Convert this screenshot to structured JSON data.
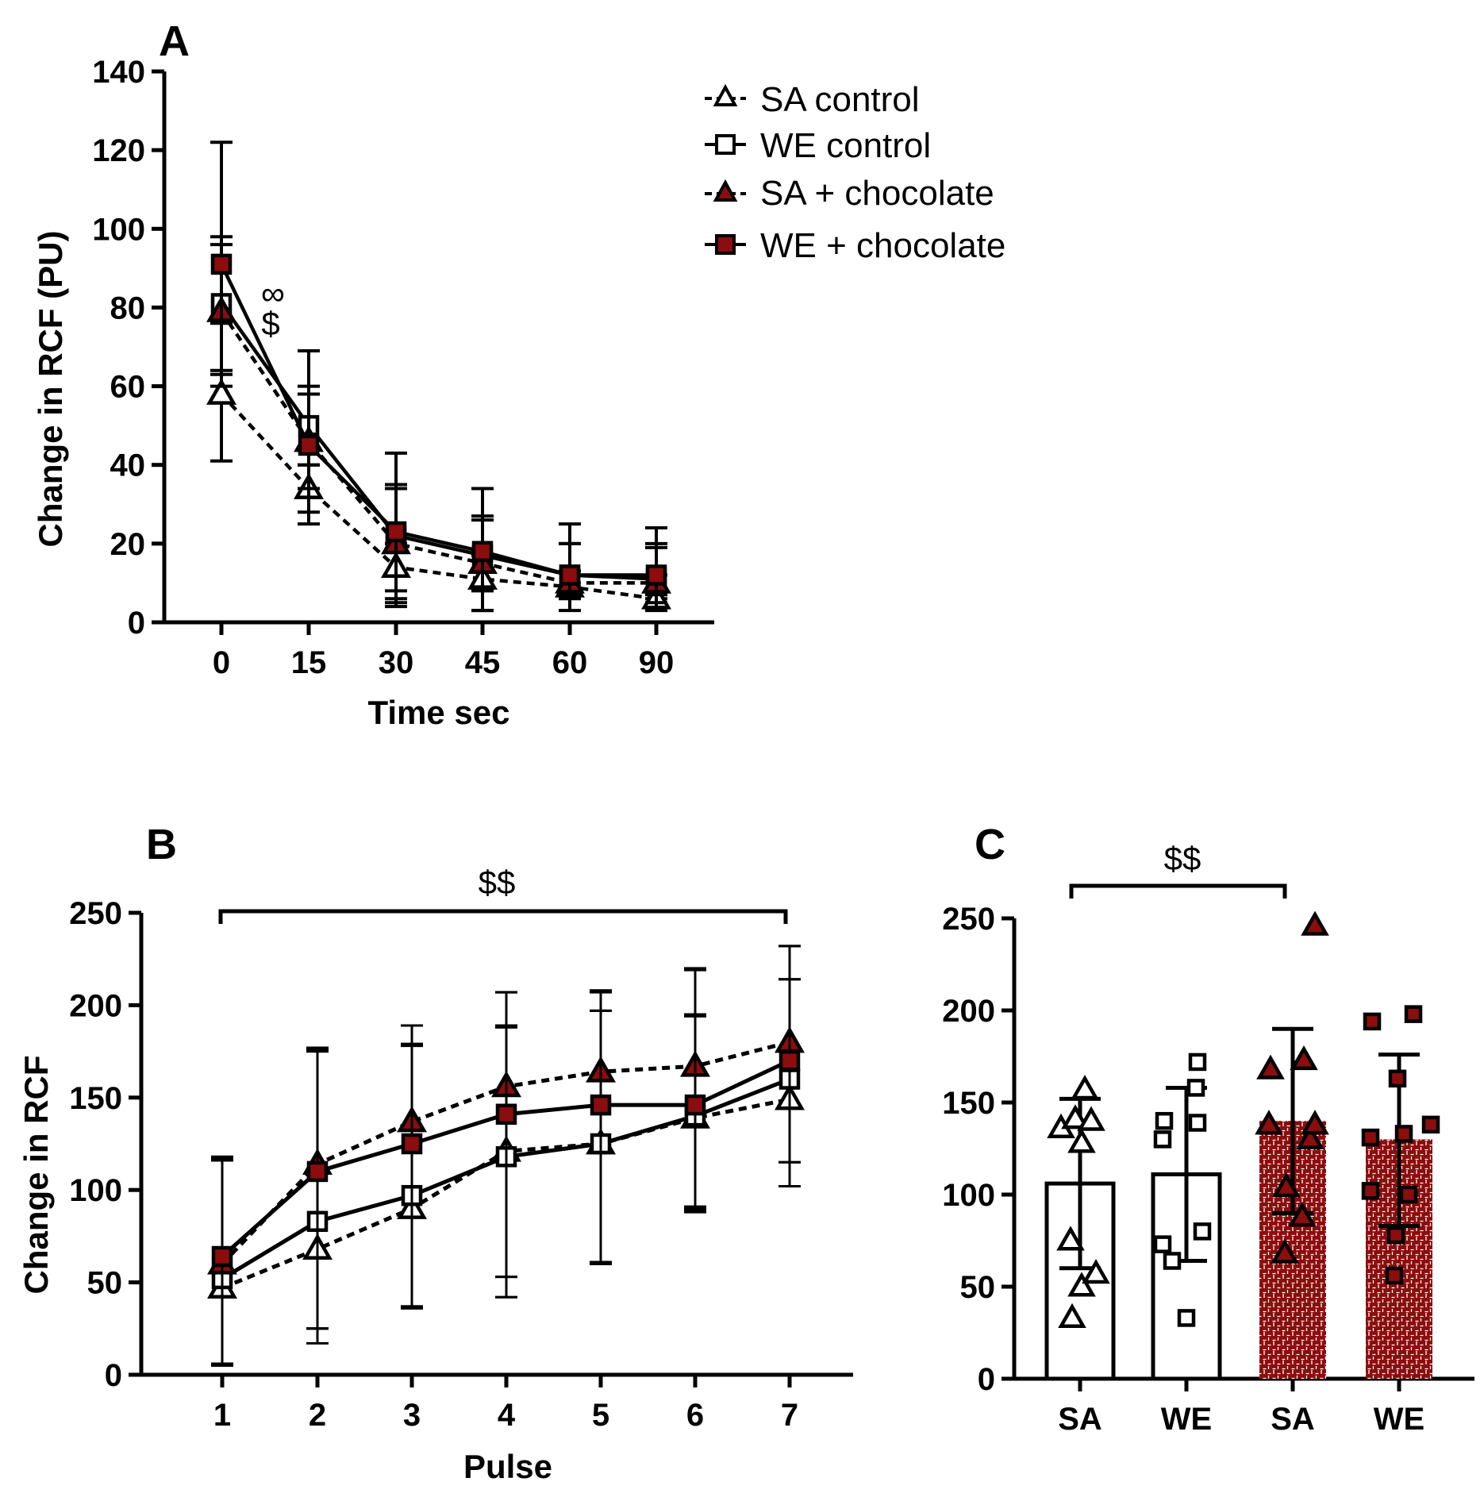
{
  "colors": {
    "accent": "#8b0d0d",
    "ink": "#000000",
    "background": "#ffffff"
  },
  "legend": [
    {
      "label": "SA control",
      "marker": "triangle-open",
      "line": "dashed"
    },
    {
      "label": "WE control",
      "marker": "square-open",
      "line": "solid"
    },
    {
      "label": "SA + chocolate",
      "marker": "triangle-filled",
      "line": "dashed"
    },
    {
      "label": "WE + chocolate",
      "marker": "square-filled",
      "line": "solid"
    }
  ],
  "chart_data": [
    {
      "panel": "A",
      "type": "line",
      "xlabel": "Time sec",
      "ylabel": "Change in RCF (PU)",
      "categories": [
        "0",
        "15",
        "30",
        "45",
        "60",
        "90"
      ],
      "ylim": [
        0,
        140
      ],
      "yticks": [
        "0",
        "20",
        "40",
        "60",
        "80",
        "100",
        "120",
        "140"
      ],
      "annotations": [
        "∞",
        "$"
      ],
      "series": [
        {
          "name": "SA control",
          "values": [
            58,
            34,
            14,
            11,
            9,
            6
          ],
          "err_hi": [
            76,
            40,
            20,
            17,
            13,
            12
          ],
          "err_lo": [
            41,
            28,
            5,
            3,
            9,
            6
          ]
        },
        {
          "name": "WE control",
          "values": [
            81,
            50,
            22,
            17,
            12,
            11
          ],
          "err_hi": [
            98,
            60,
            35,
            27,
            20,
            20
          ],
          "err_lo": [
            64,
            40,
            8,
            9,
            7,
            7
          ]
        },
        {
          "name": "SA + chocolate",
          "values": [
            79,
            46,
            20,
            15,
            10,
            10
          ],
          "err_hi": [
            96,
            58,
            34,
            26,
            20,
            19
          ],
          "err_lo": [
            63,
            34,
            6,
            8,
            6,
            5
          ]
        },
        {
          "name": "WE + chocolate",
          "values": [
            91,
            45,
            23,
            18,
            12,
            12
          ],
          "err_hi": [
            122,
            69,
            43,
            34,
            25,
            24
          ],
          "err_lo": [
            60,
            25,
            4,
            3,
            3,
            3
          ]
        }
      ]
    },
    {
      "panel": "B",
      "type": "line",
      "xlabel": "Pulse",
      "ylabel": "Change in RCF",
      "categories": [
        "1",
        "2",
        "3",
        "4",
        "5",
        "6",
        "7"
      ],
      "ylim": [
        0,
        250
      ],
      "yticks": [
        "0",
        "50",
        "100",
        "150",
        "200",
        "250"
      ],
      "significance": {
        "label": "$$",
        "from": "1",
        "to": "7"
      },
      "series": [
        {
          "name": "SA control",
          "values": [
            47,
            68,
            90,
            121,
            125,
            139,
            149
          ],
          "err_hi": [
            117,
            177,
            189,
            189,
            197,
            220,
            214
          ],
          "err_lo": [
            5,
            17,
            36,
            53,
            61,
            88,
            115
          ]
        },
        {
          "name": "WE control",
          "values": [
            52,
            83,
            97,
            118,
            125,
            140,
            160
          ],
          "err_hi": [
            118,
            176,
            179,
            207,
            207,
            195,
            232
          ],
          "err_lo": [
            6,
            25,
            37,
            42,
            60,
            91,
            102
          ]
        },
        {
          "name": "SA + chocolate",
          "values": [
            60,
            114,
            137,
            156,
            164,
            167,
            180
          ],
          "err_hi": [
            116,
            175,
            178,
            188,
            197,
            219,
            214
          ],
          "err_lo": [
            5,
            25,
            36,
            53,
            60,
            89,
            115
          ]
        },
        {
          "name": "WE + chocolate",
          "values": [
            64,
            110,
            125,
            141,
            146,
            146,
            170
          ],
          "err_hi": [
            116,
            175,
            179,
            207,
            208,
            194,
            232
          ],
          "err_lo": [
            6,
            25,
            37,
            42,
            60,
            90,
            102
          ]
        }
      ]
    },
    {
      "panel": "C",
      "type": "bar",
      "categories": [
        "SA",
        "WE",
        "SA",
        "WE"
      ],
      "ylim": [
        0,
        250
      ],
      "yticks": [
        "0",
        "50",
        "100",
        "150",
        "200",
        "250"
      ],
      "significance": {
        "label": "$$",
        "from": 0,
        "to": 2
      },
      "series": [
        {
          "name": "SA control",
          "mean": 106,
          "err_hi": 152,
          "err_lo": 60,
          "points": [
            33,
            50,
            57,
            75,
            128,
            136,
            141,
            140,
            157
          ]
        },
        {
          "name": "WE control",
          "mean": 111,
          "err_hi": 158,
          "err_lo": 64,
          "points": [
            33,
            64,
            73,
            80,
            130,
            140,
            139,
            158,
            172
          ]
        },
        {
          "name": "SA + chocolate",
          "mean": 140,
          "err_hi": 190,
          "err_lo": 90,
          "points": [
            68,
            88,
            104,
            130,
            138,
            138,
            168,
            173,
            246
          ]
        },
        {
          "name": "WE + chocolate",
          "mean": 130,
          "err_hi": 176,
          "err_lo": 83,
          "points": [
            56,
            78,
            100,
            102,
            131,
            133,
            138,
            163,
            194,
            198
          ]
        }
      ]
    }
  ]
}
